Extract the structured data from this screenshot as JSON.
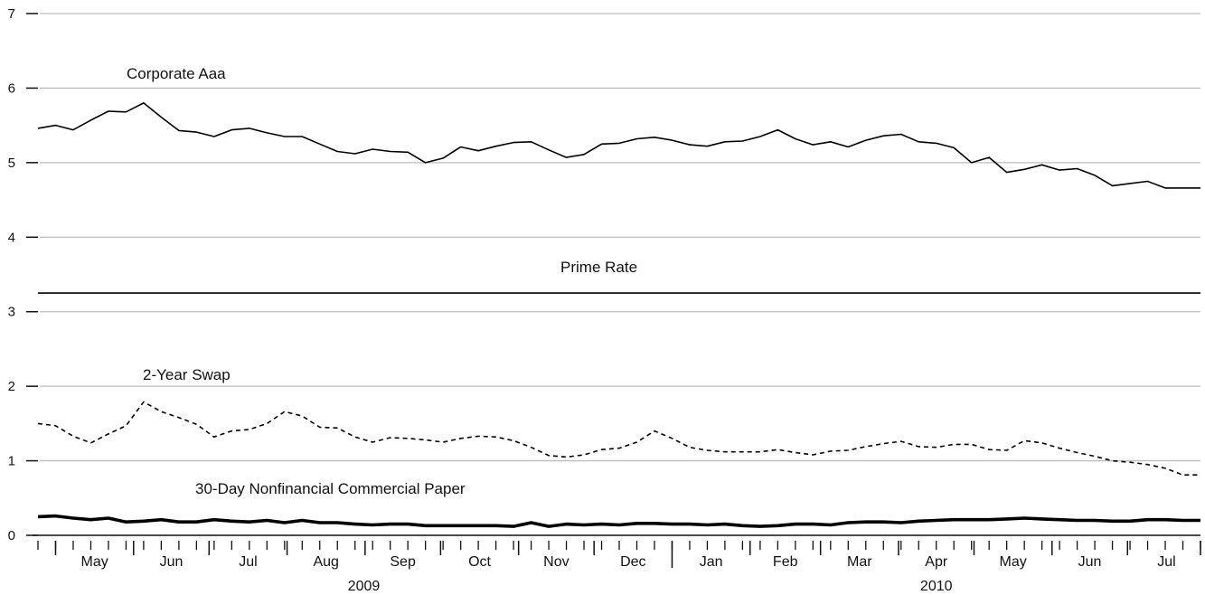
{
  "chart_data": {
    "type": "line",
    "title": "",
    "xlabel": "",
    "ylabel": "",
    "ylim": [
      0,
      7
    ],
    "y_ticks": [
      0,
      1,
      2,
      3,
      4,
      5,
      6,
      7
    ],
    "grid": "horizontal",
    "x_range": [
      "2009-04-24",
      "2010-07-30"
    ],
    "months": [
      {
        "label": "May",
        "start": "2009-05-01"
      },
      {
        "label": "Jun",
        "start": "2009-06-01"
      },
      {
        "label": "Jul",
        "start": "2009-07-01"
      },
      {
        "label": "Aug",
        "start": "2009-08-01"
      },
      {
        "label": "Sep",
        "start": "2009-09-01"
      },
      {
        "label": "Oct",
        "start": "2009-10-01"
      },
      {
        "label": "Nov",
        "start": "2009-11-01"
      },
      {
        "label": "Dec",
        "start": "2009-12-01"
      },
      {
        "label": "Jan",
        "start": "2010-01-01"
      },
      {
        "label": "Feb",
        "start": "2010-02-01"
      },
      {
        "label": "Mar",
        "start": "2010-03-01"
      },
      {
        "label": "Apr",
        "start": "2010-04-01"
      },
      {
        "label": "May",
        "start": "2010-05-01"
      },
      {
        "label": "Jun",
        "start": "2010-06-01"
      },
      {
        "label": "Jul",
        "start": "2010-07-01"
      }
    ],
    "years": [
      {
        "label": "2009",
        "from": "2009-05-01",
        "to": "2010-01-01"
      },
      {
        "label": "2010",
        "from": "2010-01-01",
        "to": "2010-08-01"
      }
    ],
    "series": [
      {
        "name": "Corporate Aaa",
        "style": "solid",
        "x": [
          "2009-04-24",
          "2009-05-01",
          "2009-05-08",
          "2009-05-15",
          "2009-05-22",
          "2009-05-29",
          "2009-06-05",
          "2009-06-12",
          "2009-06-19",
          "2009-06-26",
          "2009-07-03",
          "2009-07-10",
          "2009-07-17",
          "2009-07-24",
          "2009-07-31",
          "2009-08-07",
          "2009-08-14",
          "2009-08-21",
          "2009-08-28",
          "2009-09-04",
          "2009-09-11",
          "2009-09-18",
          "2009-09-25",
          "2009-10-02",
          "2009-10-09",
          "2009-10-16",
          "2009-10-23",
          "2009-10-30",
          "2009-11-06",
          "2009-11-13",
          "2009-11-20",
          "2009-11-27",
          "2009-12-04",
          "2009-12-11",
          "2009-12-18",
          "2009-12-25",
          "2010-01-01",
          "2010-01-08",
          "2010-01-15",
          "2010-01-22",
          "2010-01-29",
          "2010-02-05",
          "2010-02-12",
          "2010-02-19",
          "2010-02-26",
          "2010-03-05",
          "2010-03-12",
          "2010-03-19",
          "2010-03-26",
          "2010-04-02",
          "2010-04-09",
          "2010-04-16",
          "2010-04-23",
          "2010-04-30",
          "2010-05-07",
          "2010-05-14",
          "2010-05-21",
          "2010-05-28",
          "2010-06-04",
          "2010-06-11",
          "2010-06-18",
          "2010-06-25",
          "2010-07-02",
          "2010-07-09",
          "2010-07-16",
          "2010-07-23",
          "2010-07-30"
        ],
        "y": [
          5.46,
          5.5,
          5.44,
          5.57,
          5.69,
          5.68,
          5.8,
          5.61,
          5.43,
          5.41,
          5.35,
          5.44,
          5.46,
          5.4,
          5.35,
          5.35,
          5.25,
          5.15,
          5.12,
          5.18,
          5.15,
          5.14,
          5.0,
          5.06,
          5.21,
          5.16,
          5.22,
          5.27,
          5.28,
          5.17,
          5.07,
          5.11,
          5.25,
          5.26,
          5.32,
          5.34,
          5.3,
          5.24,
          5.22,
          5.28,
          5.29,
          5.35,
          5.44,
          5.32,
          5.24,
          5.28,
          5.21,
          5.3,
          5.36,
          5.38,
          5.28,
          5.26,
          5.2,
          5.0,
          5.07,
          4.87,
          4.91,
          4.97,
          4.9,
          4.92,
          4.83,
          4.69,
          4.72,
          4.75,
          4.66,
          4.66,
          4.66
        ]
      },
      {
        "name": "Prime Rate",
        "style": "solid",
        "x": [
          "2009-04-24",
          "2010-07-30"
        ],
        "y": [
          3.25,
          3.25
        ]
      },
      {
        "name": "2-Year Swap",
        "style": "dashed",
        "x": [
          "2009-04-24",
          "2009-05-01",
          "2009-05-08",
          "2009-05-15",
          "2009-05-22",
          "2009-05-29",
          "2009-06-05",
          "2009-06-12",
          "2009-06-19",
          "2009-06-26",
          "2009-07-03",
          "2009-07-10",
          "2009-07-17",
          "2009-07-24",
          "2009-07-31",
          "2009-08-07",
          "2009-08-14",
          "2009-08-21",
          "2009-08-28",
          "2009-09-04",
          "2009-09-11",
          "2009-09-18",
          "2009-09-25",
          "2009-10-02",
          "2009-10-09",
          "2009-10-16",
          "2009-10-23",
          "2009-10-30",
          "2009-11-06",
          "2009-11-13",
          "2009-11-20",
          "2009-11-27",
          "2009-12-04",
          "2009-12-11",
          "2009-12-18",
          "2009-12-25",
          "2010-01-01",
          "2010-01-08",
          "2010-01-15",
          "2010-01-22",
          "2010-01-29",
          "2010-02-05",
          "2010-02-12",
          "2010-02-19",
          "2010-02-26",
          "2010-03-05",
          "2010-03-12",
          "2010-03-19",
          "2010-03-26",
          "2010-04-02",
          "2010-04-09",
          "2010-04-16",
          "2010-04-23",
          "2010-04-30",
          "2010-05-07",
          "2010-05-14",
          "2010-05-21",
          "2010-05-28",
          "2010-06-04",
          "2010-06-11",
          "2010-06-18",
          "2010-06-25",
          "2010-07-02",
          "2010-07-09",
          "2010-07-16",
          "2010-07-23",
          "2010-07-30"
        ],
        "y": [
          1.5,
          1.47,
          1.33,
          1.24,
          1.36,
          1.47,
          1.79,
          1.66,
          1.58,
          1.49,
          1.32,
          1.4,
          1.42,
          1.5,
          1.66,
          1.6,
          1.45,
          1.44,
          1.32,
          1.25,
          1.31,
          1.3,
          1.28,
          1.25,
          1.3,
          1.33,
          1.32,
          1.27,
          1.18,
          1.07,
          1.05,
          1.08,
          1.15,
          1.17,
          1.25,
          1.4,
          1.3,
          1.18,
          1.14,
          1.12,
          1.12,
          1.12,
          1.15,
          1.11,
          1.08,
          1.13,
          1.14,
          1.19,
          1.23,
          1.26,
          1.19,
          1.18,
          1.22,
          1.22,
          1.15,
          1.14,
          1.27,
          1.24,
          1.17,
          1.11,
          1.06,
          1.0,
          0.98,
          0.95,
          0.9,
          0.81,
          0.81
        ]
      },
      {
        "name": "30-Day Nonfinancial Commercial Paper",
        "style": "thick",
        "x": [
          "2009-04-24",
          "2009-05-01",
          "2009-05-08",
          "2009-05-15",
          "2009-05-22",
          "2009-05-29",
          "2009-06-05",
          "2009-06-12",
          "2009-06-19",
          "2009-06-26",
          "2009-07-03",
          "2009-07-10",
          "2009-07-17",
          "2009-07-24",
          "2009-07-31",
          "2009-08-07",
          "2009-08-14",
          "2009-08-21",
          "2009-08-28",
          "2009-09-04",
          "2009-09-11",
          "2009-09-18",
          "2009-09-25",
          "2009-10-02",
          "2009-10-09",
          "2009-10-16",
          "2009-10-23",
          "2009-10-30",
          "2009-11-06",
          "2009-11-13",
          "2009-11-20",
          "2009-11-27",
          "2009-12-04",
          "2009-12-11",
          "2009-12-18",
          "2009-12-25",
          "2010-01-01",
          "2010-01-08",
          "2010-01-15",
          "2010-01-22",
          "2010-01-29",
          "2010-02-05",
          "2010-02-12",
          "2010-02-19",
          "2010-02-26",
          "2010-03-05",
          "2010-03-12",
          "2010-03-19",
          "2010-03-26",
          "2010-04-02",
          "2010-04-09",
          "2010-04-16",
          "2010-04-23",
          "2010-04-30",
          "2010-05-07",
          "2010-05-14",
          "2010-05-21",
          "2010-05-28",
          "2010-06-04",
          "2010-06-11",
          "2010-06-18",
          "2010-06-25",
          "2010-07-02",
          "2010-07-09",
          "2010-07-16",
          "2010-07-23",
          "2010-07-30"
        ],
        "y": [
          0.25,
          0.26,
          0.23,
          0.21,
          0.23,
          0.18,
          0.19,
          0.21,
          0.18,
          0.18,
          0.21,
          0.19,
          0.18,
          0.2,
          0.17,
          0.2,
          0.17,
          0.17,
          0.15,
          0.14,
          0.15,
          0.15,
          0.13,
          0.13,
          0.13,
          0.13,
          0.13,
          0.12,
          0.17,
          0.12,
          0.15,
          0.14,
          0.15,
          0.14,
          0.16,
          0.16,
          0.15,
          0.15,
          0.14,
          0.15,
          0.13,
          0.12,
          0.13,
          0.15,
          0.15,
          0.14,
          0.17,
          0.18,
          0.18,
          0.17,
          0.19,
          0.2,
          0.21,
          0.21,
          0.21,
          0.22,
          0.23,
          0.22,
          0.21,
          0.2,
          0.2,
          0.19,
          0.19,
          0.21,
          0.21,
          0.2,
          0.2
        ]
      }
    ]
  }
}
